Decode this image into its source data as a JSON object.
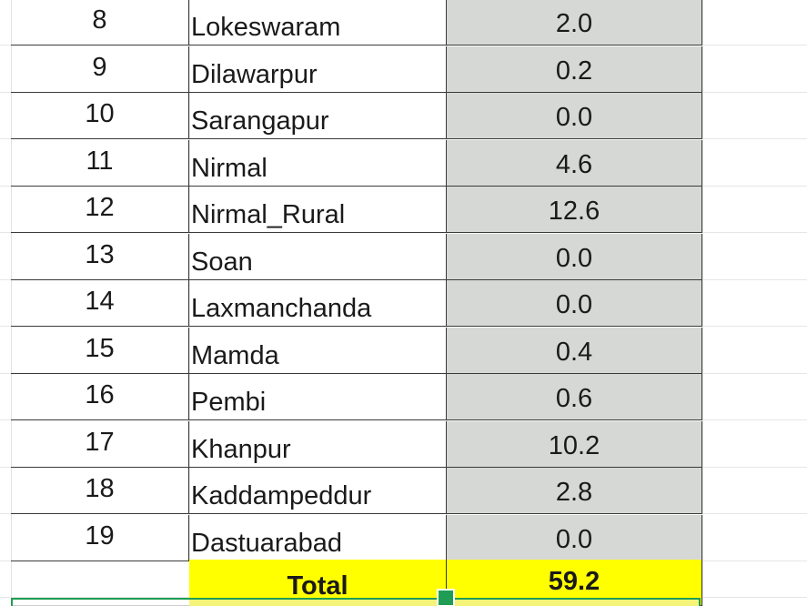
{
  "table": {
    "rows": [
      {
        "num": "8",
        "name": "Lokeswaram",
        "value": "2.0"
      },
      {
        "num": "9",
        "name": "Dilawarpur",
        "value": "0.2"
      },
      {
        "num": "10",
        "name": "Sarangapur",
        "value": "0.0"
      },
      {
        "num": "11",
        "name": "Nirmal",
        "value": "4.6"
      },
      {
        "num": "12",
        "name": "Nirmal_Rural",
        "value": "12.6"
      },
      {
        "num": "13",
        "name": "Soan",
        "value": "0.0"
      },
      {
        "num": "14",
        "name": "Laxmanchanda",
        "value": "0.0"
      },
      {
        "num": "15",
        "name": "Mamda",
        "value": "0.4"
      },
      {
        "num": "16",
        "name": "Pembi",
        "value": "0.6"
      },
      {
        "num": "17",
        "name": "Khanpur",
        "value": "10.2"
      },
      {
        "num": "18",
        "name": "Kaddampeddur",
        "value": "2.8"
      },
      {
        "num": "19",
        "name": "Dastuarabad",
        "value": "0.0"
      }
    ],
    "total": {
      "label": "Total",
      "value": "59.2"
    }
  },
  "colors": {
    "value_column_fill": "#d6d8d6",
    "total_highlight": "#ffff00",
    "selection_border": "#1f9d55"
  }
}
